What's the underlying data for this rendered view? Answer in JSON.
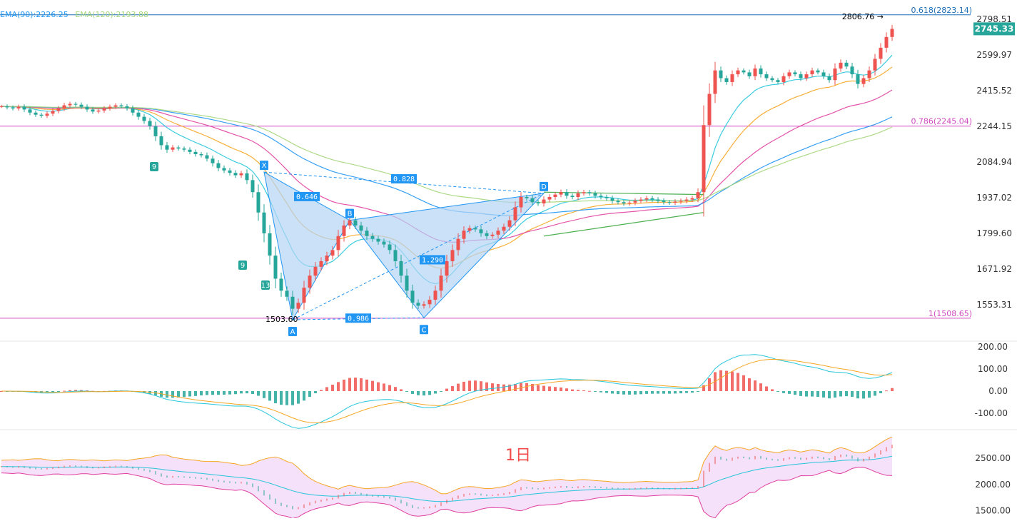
{
  "legend": {
    "ema90": "EMA(90):2226.25",
    "ema120": "EMA(120):2193.88",
    "ema90_color": "#2196f3",
    "ema120_color": "#a5d67a"
  },
  "timeframe_label": "1日",
  "colors": {
    "up": "#ef5350",
    "down": "#26a69a",
    "pattern_fill": "#b3d4f5",
    "pattern_stroke": "#2196f3",
    "fib_line": "#d04bc0",
    "top_line": "#1e6fb8",
    "current_price_bg": "#26a69a"
  },
  "chart_data": [
    {
      "type": "candlestick",
      "y_ticks": [
        "2798.51",
        "2599.97",
        "2415.52",
        "2244.15",
        "2084.94",
        "1937.02",
        "1799.60",
        "1671.92",
        "1553.31"
      ],
      "y_tick_values": [
        2798.51,
        2599.97,
        2415.52,
        2244.15,
        2084.94,
        1937.02,
        1799.6,
        1671.92,
        1553.31
      ],
      "current_price": "2745.33",
      "high_label": "2806.76",
      "low_label": "1503.60",
      "fib_levels": [
        {
          "label": "0.618(2823.14)",
          "value": 2823.14
        },
        {
          "label": "0.786(2245.04)",
          "value": 2245.04
        },
        {
          "label": "1(1508.65)",
          "value": 1508.65
        }
      ],
      "pattern": {
        "points": [
          {
            "label": "X",
            "value": 2043
          },
          {
            "label": "A",
            "value": 1503.6
          },
          {
            "label": "B",
            "value": 1850
          },
          {
            "label": "C",
            "value": 1510
          },
          {
            "label": "D",
            "value": 1955
          }
        ],
        "ratios": [
          "0.646",
          "0.828",
          "1.290",
          "0.986"
        ]
      },
      "td_labels": [
        "9",
        "9",
        "13"
      ],
      "closes": [
        2340,
        2335,
        2330,
        2338,
        2325,
        2310,
        2300,
        2295,
        2305,
        2318,
        2330,
        2345,
        2352,
        2348,
        2338,
        2325,
        2315,
        2320,
        2330,
        2338,
        2345,
        2340,
        2330,
        2310,
        2290,
        2270,
        2245,
        2200,
        2160,
        2140,
        2150,
        2145,
        2140,
        2130,
        2120,
        2115,
        2100,
        2080,
        2060,
        2050,
        2040,
        2030,
        2038,
        2010,
        1960,
        1880,
        1800,
        1720,
        1640,
        1600,
        1580,
        1540,
        1560,
        1610,
        1650,
        1680,
        1700,
        1720,
        1740,
        1790,
        1830,
        1850,
        1830,
        1810,
        1790,
        1780,
        1770,
        1760,
        1740,
        1700,
        1650,
        1600,
        1560,
        1550,
        1555,
        1570,
        1600,
        1650,
        1700,
        1740,
        1780,
        1810,
        1820,
        1815,
        1800,
        1790,
        1795,
        1810,
        1825,
        1850,
        1900,
        1940,
        1935,
        1920,
        1915,
        1930,
        1940,
        1950,
        1960,
        1945,
        1940,
        1955,
        1960,
        1955,
        1945,
        1940,
        1935,
        1925,
        1920,
        1915,
        1918,
        1925,
        1930,
        1935,
        1930,
        1925,
        1920,
        1918,
        1922,
        1925,
        1930,
        1935,
        1960,
        2250,
        2400,
        2520,
        2480,
        2460,
        2500,
        2520,
        2510,
        2490,
        2530,
        2500,
        2480,
        2470,
        2460,
        2490,
        2510,
        2500,
        2480,
        2500,
        2520,
        2510,
        2490,
        2470,
        2530,
        2560,
        2540,
        2500,
        2450,
        2480,
        2520,
        2580,
        2640,
        2700,
        2745
      ],
      "macd_ticks": [
        "200.00",
        "100.00",
        "0.00",
        "-100.00"
      ],
      "macd_tick_values": [
        200,
        100,
        0,
        -100
      ],
      "lower_ticks": [
        "2500.00",
        "2000.00",
        "1500.00"
      ],
      "lower_tick_values": [
        2500,
        2000,
        1500
      ]
    }
  ]
}
